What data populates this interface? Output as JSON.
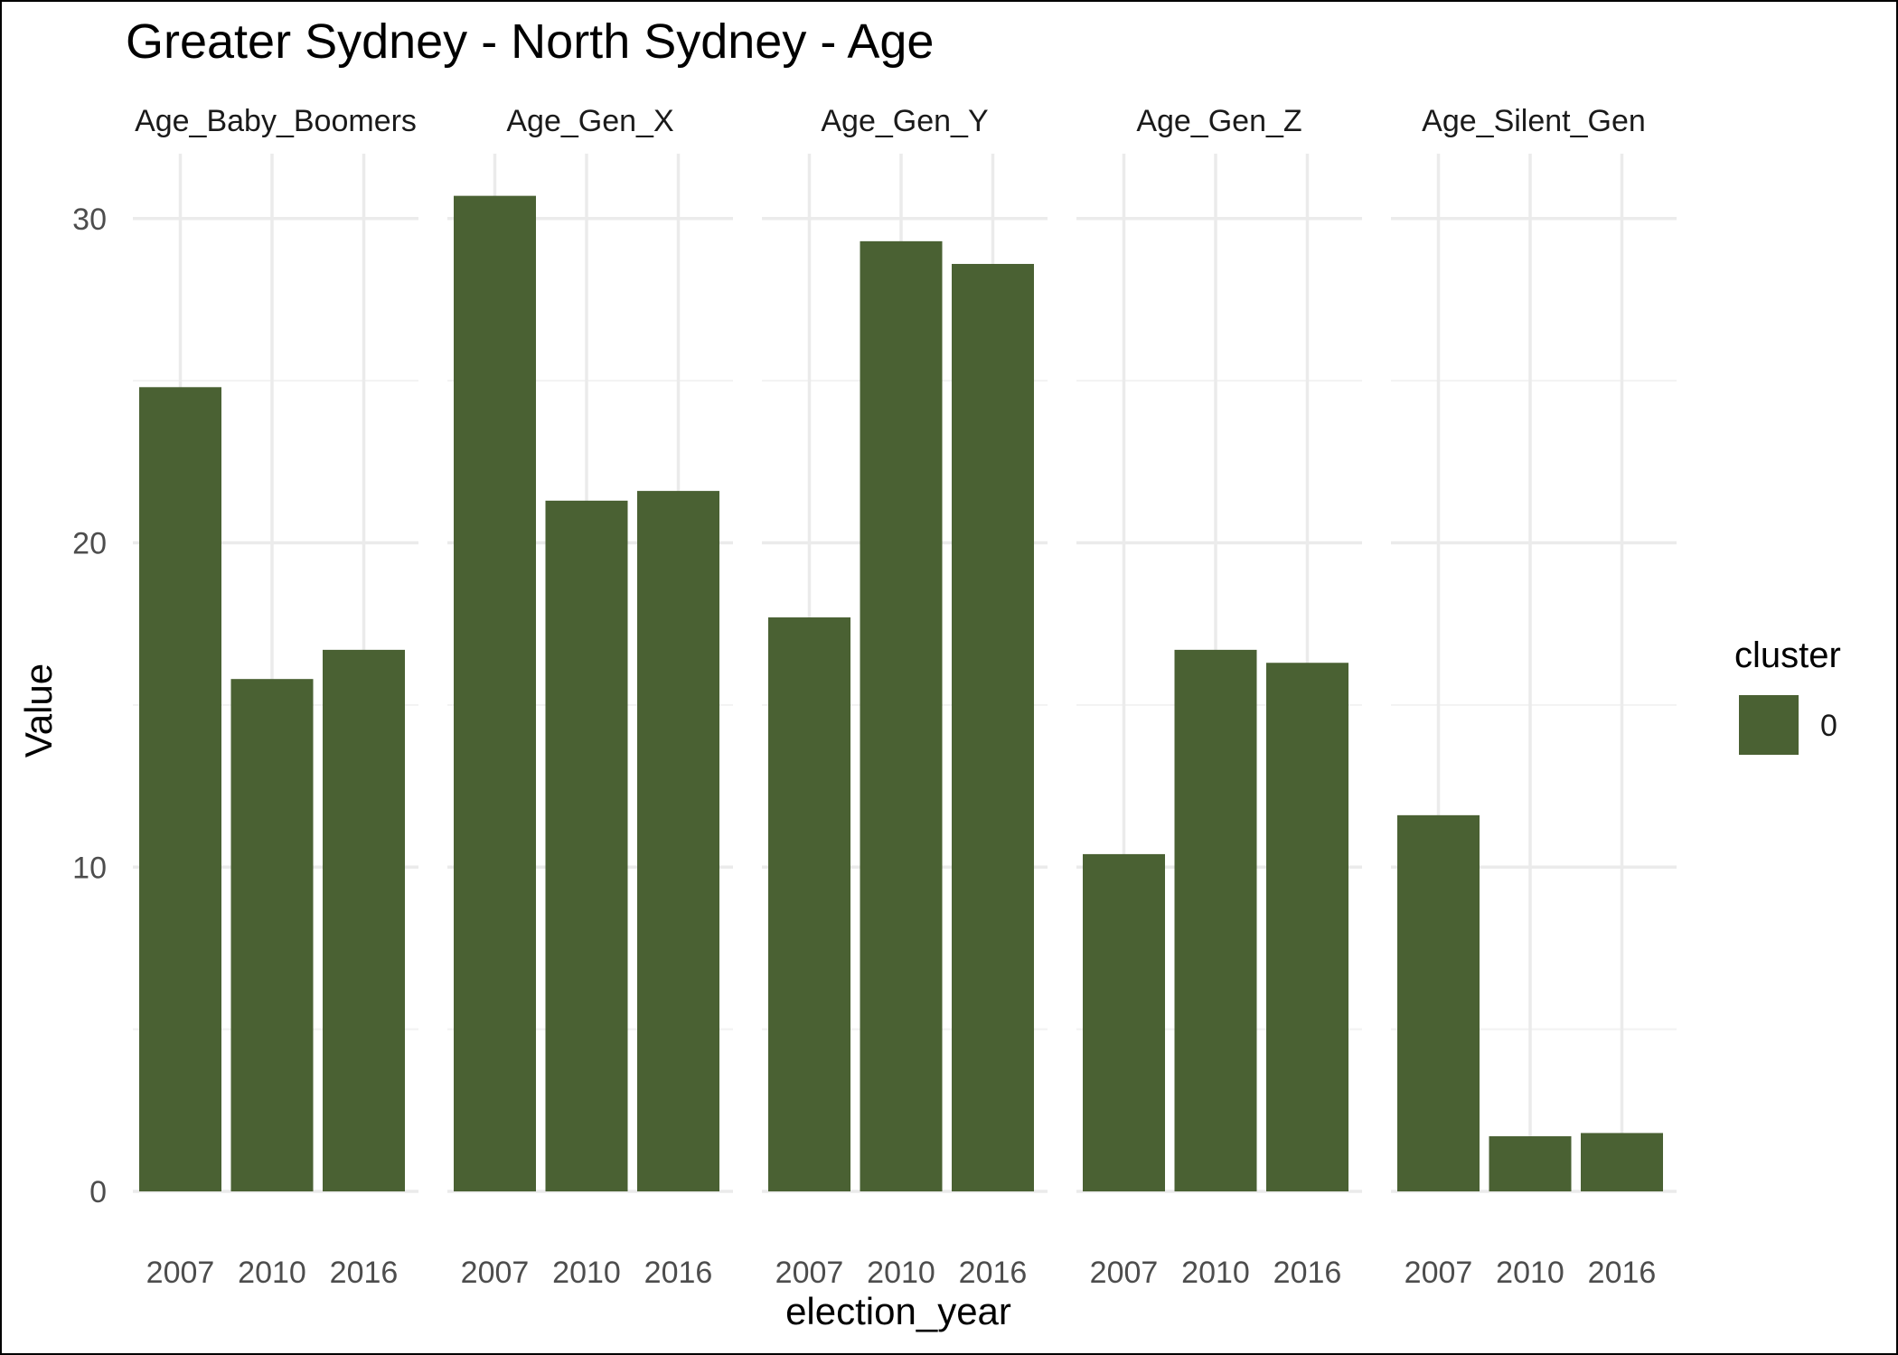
{
  "chart_data": {
    "type": "bar",
    "title": "Greater Sydney - North Sydney - Age",
    "xlabel": "election_year",
    "ylabel": "Value",
    "ylim": [
      0,
      32
    ],
    "y_ticks": [
      0,
      10,
      20,
      30
    ],
    "grid": true,
    "facets": [
      "Age_Baby_Boomers",
      "Age_Gen_X",
      "Age_Gen_Y",
      "Age_Gen_Z",
      "Age_Silent_Gen"
    ],
    "categories": [
      "2007",
      "2010",
      "2016"
    ],
    "series": [
      {
        "name": "0",
        "color": "#4a6133",
        "values": {
          "Age_Baby_Boomers": [
            24.8,
            15.8,
            16.7
          ],
          "Age_Gen_X": [
            30.7,
            21.3,
            21.6
          ],
          "Age_Gen_Y": [
            17.7,
            29.3,
            28.6
          ],
          "Age_Gen_Z": [
            10.4,
            16.7,
            16.3
          ],
          "Age_Silent_Gen": [
            11.6,
            1.7,
            1.8
          ]
        }
      }
    ],
    "legend": {
      "title": "cluster",
      "position": "right"
    }
  }
}
